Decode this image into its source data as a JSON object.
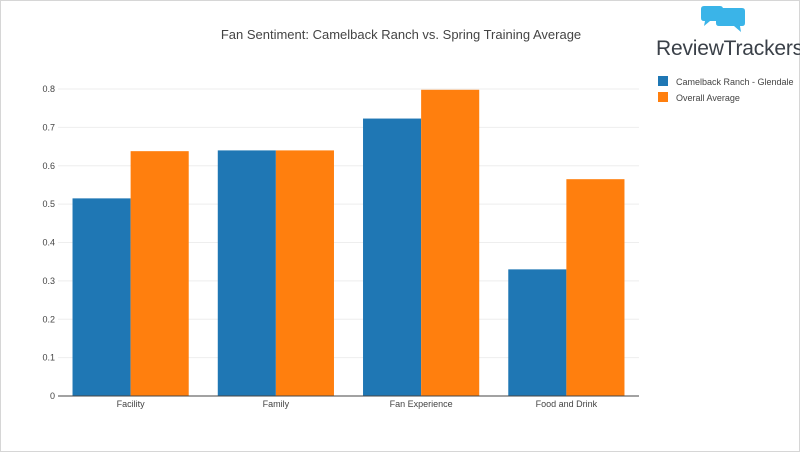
{
  "brand": {
    "name": "ReviewTrackers",
    "icon": "speech-bubbles-icon",
    "color": "#3ab4e8"
  },
  "chart_data": {
    "type": "bar",
    "title": "Fan Sentiment: Camelback Ranch vs. Spring Training Average",
    "categories": [
      "Facility",
      "Family",
      "Fan Experience",
      "Food and Drink"
    ],
    "series": [
      {
        "name": "Camelback Ranch - Glendale",
        "color": "#1f77b4",
        "values": [
          0.515,
          0.64,
          0.723,
          0.33
        ]
      },
      {
        "name": "Overall Average",
        "color": "#ff7f0e",
        "values": [
          0.638,
          0.64,
          0.798,
          0.565
        ]
      }
    ],
    "ylim": [
      0,
      0.8
    ],
    "yticks": [
      "0",
      "0.1",
      "0.2",
      "0.3",
      "0.4",
      "0.5",
      "0.6",
      "0.7",
      "0.8"
    ],
    "xlabel": "",
    "ylabel": "",
    "grid": true,
    "legend": "top-right"
  }
}
